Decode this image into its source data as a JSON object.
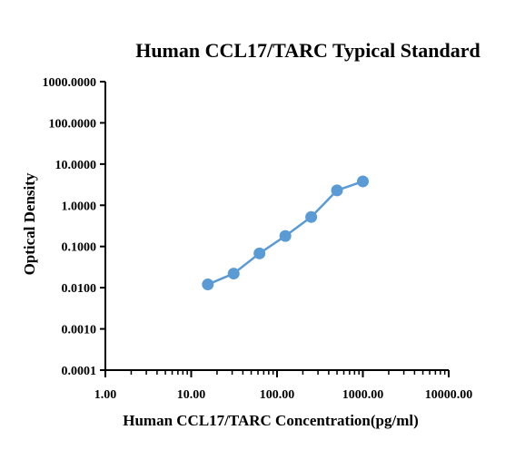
{
  "chart_data": {
    "type": "line",
    "title": "Human CCL17/TARC Typical Standard",
    "xlabel": "Human CCL17/TARC Concentration(pg/ml)",
    "ylabel": "Optical Density",
    "x_scale": "log",
    "y_scale": "log",
    "xlim": [
      1,
      10000
    ],
    "ylim": [
      0.0001,
      1000
    ],
    "x_ticks": [
      1,
      10,
      100,
      1000,
      10000
    ],
    "x_tick_labels": [
      "1.00",
      "10.00",
      "100.00",
      "1000.00",
      "10000.00"
    ],
    "y_ticks": [
      0.0001,
      0.001,
      0.01,
      0.1,
      1,
      10,
      100,
      1000
    ],
    "y_tick_labels": [
      "0.0001",
      "0.0010",
      "0.0100",
      "0.1000",
      "1.0000",
      "10.0000",
      "100.0000",
      "1000.0000"
    ],
    "grid": false,
    "series": [
      {
        "color": "#5b9bd5",
        "x": [
          15.625,
          31.25,
          62.5,
          125,
          250,
          500,
          1000
        ],
        "y": [
          0.012,
          0.022,
          0.068,
          0.18,
          0.52,
          2.3,
          3.8
        ]
      }
    ]
  }
}
